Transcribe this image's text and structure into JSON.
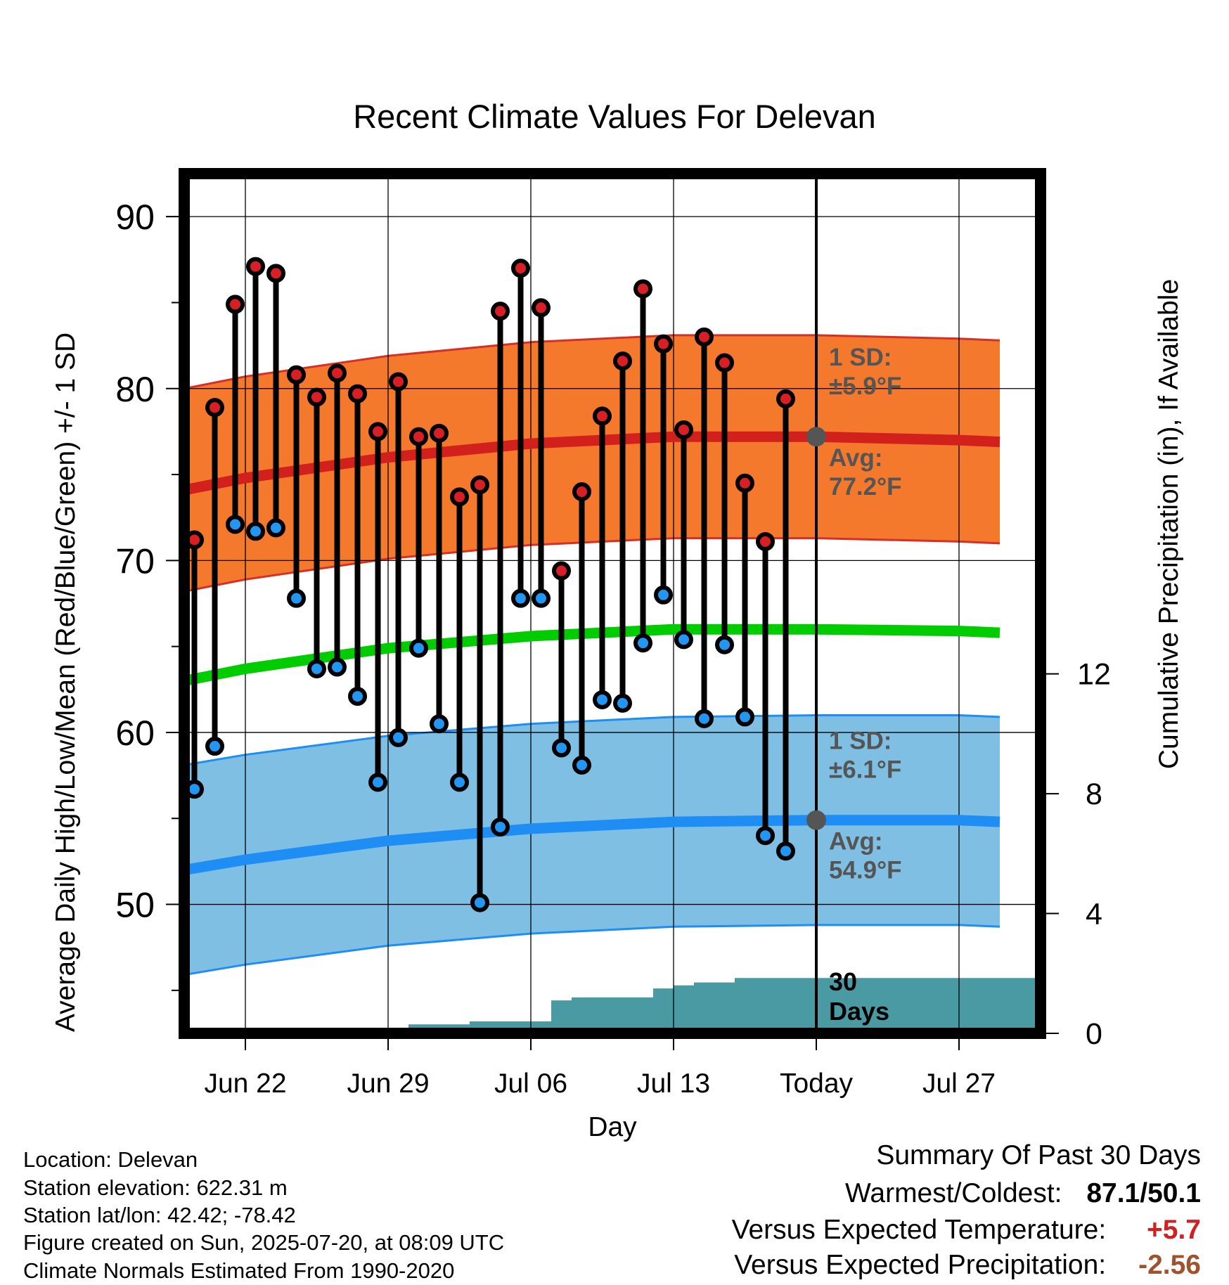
{
  "chart_data": {
    "type": "line",
    "title": "Recent Climate Values For Delevan",
    "xlabel": "Day",
    "ylabel": "Average Daily High/Low/Mean (Red/Blue/Green) +/- 1 SD",
    "y2label": "Cumulative Precipitation (in), If Available",
    "xlim": [
      "2025-06-19",
      "2025-07-31"
    ],
    "ylim": [
      42.5,
      92.5
    ],
    "y2lim": [
      0,
      28.7
    ],
    "grid": true,
    "x_ticks": [
      {
        "date": "2025-06-22",
        "label": "Jun 22"
      },
      {
        "date": "2025-06-29",
        "label": "Jun 29"
      },
      {
        "date": "2025-07-06",
        "label": "Jul 06"
      },
      {
        "date": "2025-07-13",
        "label": "Jul 13"
      },
      {
        "date": "2025-07-20",
        "label": "Today"
      },
      {
        "date": "2025-07-27",
        "label": "Jul 27"
      }
    ],
    "y_ticks": [
      50,
      60,
      70,
      80,
      90
    ],
    "y2_ticks": [
      0,
      4,
      8,
      12
    ],
    "today": "2025-07-20",
    "normal_x": [
      "2025-06-19",
      "2025-06-22",
      "2025-06-29",
      "2025-07-06",
      "2025-07-13",
      "2025-07-20",
      "2025-07-27",
      "2025-07-29"
    ],
    "normal_high": [
      74.1,
      74.8,
      76.0,
      76.8,
      77.2,
      77.2,
      77.0,
      76.9
    ],
    "normal_high_sd": 5.9,
    "normal_mean": [
      63.0,
      63.7,
      64.9,
      65.6,
      66.0,
      66.0,
      65.9,
      65.8
    ],
    "normal_low": [
      52.0,
      52.6,
      53.7,
      54.4,
      54.8,
      54.9,
      54.9,
      54.8
    ],
    "normal_low_sd": 6.1,
    "observations": [
      {
        "date": "2025-06-19",
        "high": 71.2,
        "low": 56.7
      },
      {
        "date": "2025-06-20",
        "high": 78.9,
        "low": 59.2
      },
      {
        "date": "2025-06-21",
        "high": 84.9,
        "low": 72.1
      },
      {
        "date": "2025-06-22",
        "high": 87.1,
        "low": 71.7
      },
      {
        "date": "2025-06-23",
        "high": 86.7,
        "low": 71.9
      },
      {
        "date": "2025-06-24",
        "high": 80.8,
        "low": 67.8
      },
      {
        "date": "2025-06-25",
        "high": 79.5,
        "low": 63.7
      },
      {
        "date": "2025-06-26",
        "high": 80.9,
        "low": 63.8
      },
      {
        "date": "2025-06-27",
        "high": 79.7,
        "low": 62.1
      },
      {
        "date": "2025-06-28",
        "high": 77.5,
        "low": 57.1
      },
      {
        "date": "2025-06-29",
        "high": 80.4,
        "low": 59.7
      },
      {
        "date": "2025-06-30",
        "high": 77.2,
        "low": 64.9
      },
      {
        "date": "2025-07-01",
        "high": 77.4,
        "low": 60.5
      },
      {
        "date": "2025-07-02",
        "high": 73.7,
        "low": 57.1
      },
      {
        "date": "2025-07-03",
        "high": 74.4,
        "low": 50.1
      },
      {
        "date": "2025-07-04",
        "high": 84.5,
        "low": 54.5
      },
      {
        "date": "2025-07-05",
        "high": 87.0,
        "low": 67.8
      },
      {
        "date": "2025-07-06",
        "high": 84.7,
        "low": 67.8
      },
      {
        "date": "2025-07-07",
        "high": 69.4,
        "low": 59.1
      },
      {
        "date": "2025-07-08",
        "high": 74.0,
        "low": 58.1
      },
      {
        "date": "2025-07-09",
        "high": 78.4,
        "low": 61.9
      },
      {
        "date": "2025-07-10",
        "high": 81.6,
        "low": 61.7
      },
      {
        "date": "2025-07-11",
        "high": 85.8,
        "low": 65.2
      },
      {
        "date": "2025-07-12",
        "high": 82.6,
        "low": 68.0
      },
      {
        "date": "2025-07-13",
        "high": 77.6,
        "low": 65.4
      },
      {
        "date": "2025-07-14",
        "high": 83.0,
        "low": 60.8
      },
      {
        "date": "2025-07-15",
        "high": 81.5,
        "low": 65.1
      },
      {
        "date": "2025-07-16",
        "high": 74.5,
        "low": 60.9
      },
      {
        "date": "2025-07-17",
        "high": 71.1,
        "low": 54.0
      },
      {
        "date": "2025-07-18",
        "high": 79.4,
        "low": 53.1
      }
    ],
    "precip_x": [
      "2025-06-19",
      "2025-06-26",
      "2025-06-27",
      "2025-06-28",
      "2025-06-29",
      "2025-06-30",
      "2025-07-01",
      "2025-07-02",
      "2025-07-03",
      "2025-07-04",
      "2025-07-05",
      "2025-07-06",
      "2025-07-07",
      "2025-07-08",
      "2025-07-09",
      "2025-07-10",
      "2025-07-11",
      "2025-07-12",
      "2025-07-13",
      "2025-07-14",
      "2025-07-15",
      "2025-07-16",
      "2025-07-17",
      "2025-07-18",
      "2025-07-19",
      "2025-07-20",
      "2025-07-31"
    ],
    "precip_cum": [
      0,
      0,
      0.1,
      0.1,
      0.1,
      0.3,
      0.3,
      0.3,
      0.4,
      0.4,
      0.4,
      0.4,
      1.1,
      1.2,
      1.2,
      1.2,
      1.2,
      1.5,
      1.6,
      1.7,
      1.7,
      1.85,
      1.85,
      1.85,
      1.85,
      1.85,
      1.85
    ],
    "annotations": {
      "high_sd": "1 SD:",
      "high_sd_value": "±5.9°F",
      "high_avg": "Avg:",
      "high_avg_value": "77.2°F",
      "low_sd": "1 SD:",
      "low_sd_value": "±6.1°F",
      "low_avg": "Avg:",
      "low_avg_value": "54.9°F",
      "days_number": "30",
      "days_word": "Days"
    },
    "colors": {
      "high_band": "#F5792D",
      "high_line": "#D2201C",
      "high_band_edge": "#D53027",
      "mean_line": "#00CC00",
      "low_band": "#80BFE4",
      "low_line": "#1E8EF5",
      "low_band_edge": "#1E8EF5",
      "precip": "#4A9AA4",
      "high_marker": "#D81F26",
      "low_marker": "#2196F3",
      "annotation": "#555555"
    }
  },
  "info": {
    "location": "Location: Delevan",
    "elevation": "Station elevation: 622.31 m",
    "latlon": "Station lat/lon: 42.42; -78.42",
    "created": "Figure created on Sun, 2025-07-20, at 08:09 UTC",
    "normals": "Climate Normals Estimated From 1990-2020"
  },
  "summary": {
    "title": "Summary Of Past 30 Days",
    "warm_cold_label": "Warmest/Coldest:",
    "warm_cold_value": "87.1/50.1",
    "temp_label": "Versus Expected Temperature:",
    "temp_value": "+5.7",
    "temp_color": "#D02020",
    "precip_label": "Versus Expected Precipitation:",
    "precip_value": "-2.56",
    "precip_color": "#A0522D"
  }
}
